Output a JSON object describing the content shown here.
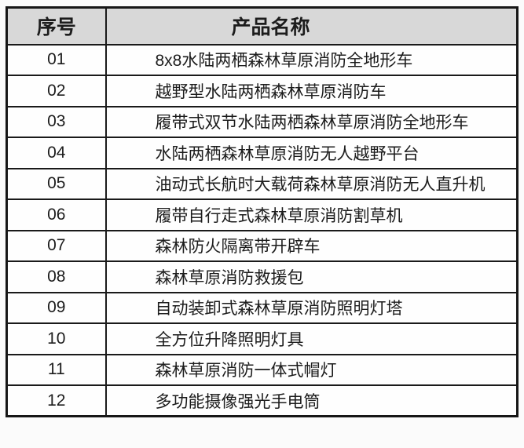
{
  "table": {
    "headers": [
      {
        "label": "序号"
      },
      {
        "label": "产品名称"
      }
    ],
    "rows": [
      {
        "index": "01",
        "name": "8x8水陆两栖森林草原消防全地形车"
      },
      {
        "index": "02",
        "name": "越野型水陆两栖森林草原消防车"
      },
      {
        "index": "03",
        "name": "履带式双节水陆两栖森林草原消防全地形车"
      },
      {
        "index": "04",
        "name": "水陆两栖森林草原消防无人越野平台"
      },
      {
        "index": "05",
        "name": "油动式长航时大载荷森林草原消防无人直升机"
      },
      {
        "index": "06",
        "name": "履带自行走式森林草原消防割草机"
      },
      {
        "index": "07",
        "name": "森林防火隔离带开辟车"
      },
      {
        "index": "08",
        "name": "森林草原消防救援包"
      },
      {
        "index": "09",
        "name": "自动装卸式森林草原消防照明灯塔"
      },
      {
        "index": "10",
        "name": "全方位升降照明灯具"
      },
      {
        "index": "11",
        "name": "森林草原消防一体式帽灯"
      },
      {
        "index": "12",
        "name": "多功能摄像强光手电筒"
      }
    ],
    "colors": {
      "header_bg": "#d8d8d8",
      "border": "#1a1a1a",
      "text": "#1c1c1c",
      "page_bg": "#fbfbfb",
      "cell_bg": "#fefefe"
    }
  }
}
